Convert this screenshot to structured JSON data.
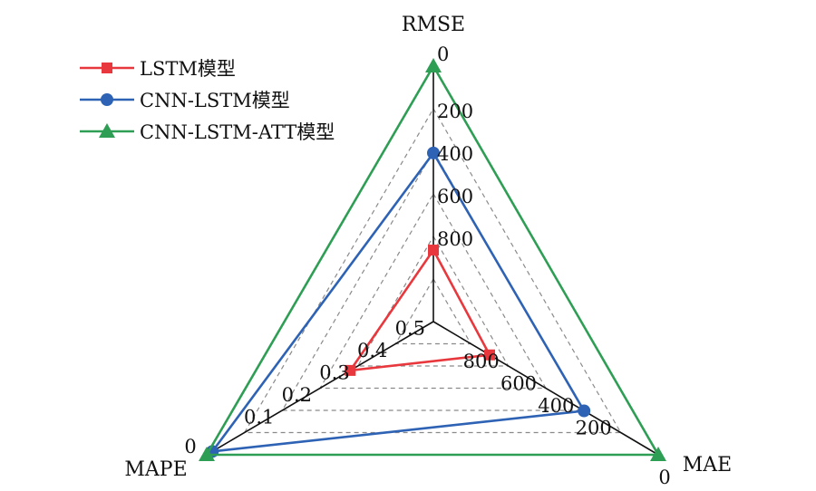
{
  "chart_data": {
    "type": "radar",
    "axes": [
      {
        "name": "RMSE",
        "ticks": [
          "0",
          "200",
          "400",
          "600",
          "800"
        ]
      },
      {
        "name": "MAE",
        "ticks": [
          "0",
          "200",
          "400",
          "600",
          "800"
        ]
      },
      {
        "name": "MAPE",
        "ticks": [
          "0",
          "0.1",
          "0.2",
          "0.3",
          "0.4",
          "0.5"
        ]
      }
    ],
    "series": [
      {
        "name": "LSTM模型",
        "color": "#e8383d",
        "marker": "square",
        "values": {
          "RMSE": 720,
          "MAE": 750,
          "MAPE": 0.38
        }
      },
      {
        "name": "CNN-LSTM模型",
        "color": "#2e62b4",
        "marker": "circle",
        "values": {
          "RMSE": 340,
          "MAE": 330,
          "MAPE": 0.015
        }
      },
      {
        "name": "CNN-LSTM-ATT模型",
        "color": "#2f9e55",
        "marker": "triangle",
        "values": {
          "RMSE": 0,
          "MAE": 0,
          "MAPE": 0
        }
      }
    ],
    "grid": true,
    "legend": "top-left"
  }
}
